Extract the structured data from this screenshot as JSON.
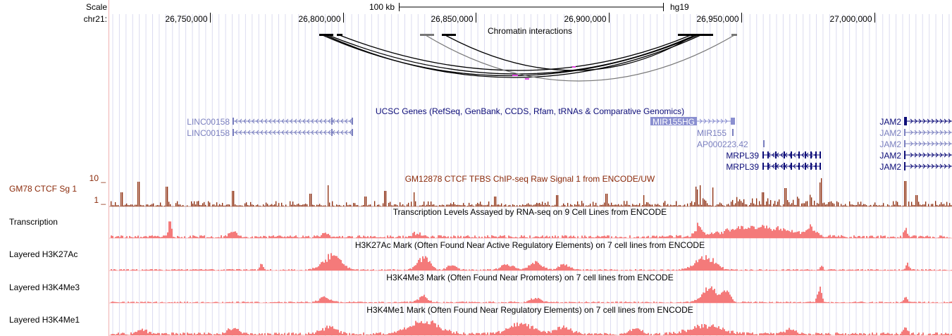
{
  "ruler": {
    "scale_label": "Scale",
    "scale_bar_text": "100 kb",
    "assembly": "hg19",
    "chrom_label": "chr21:",
    "ticks": [
      {
        "pos": 26750000,
        "label": "26,750,000"
      },
      {
        "pos": 26800000,
        "label": "26,800,000"
      },
      {
        "pos": 26850000,
        "label": "26,850,000"
      },
      {
        "pos": 26900000,
        "label": "26,900,000"
      },
      {
        "pos": 26950000,
        "label": "26,950,000"
      },
      {
        "pos": 27000000,
        "label": "27,000,000"
      }
    ]
  },
  "tracks": {
    "chromatin": {
      "title": "Chromatin interactions"
    },
    "genes": {
      "title": "UCSC Genes (RefSeq, GenBank, CCDS, Rfam, tRNAs & Comparative Genomics)",
      "items": [
        {
          "name": "LINC00158",
          "strand": "-",
          "color": "#7a7fbf"
        },
        {
          "name": "LINC00158",
          "strand": "-",
          "color": "#7a7fbf"
        },
        {
          "name": "MIR155HG",
          "strand": "+",
          "color": "#8a8fd0",
          "highlight": true
        },
        {
          "name": "MIR155",
          "strand": "+",
          "color": "#7a7fbf"
        },
        {
          "name": "AP000223.42",
          "strand": "+",
          "color": "#7a7fbf"
        },
        {
          "name": "MRPL39",
          "strand": "-",
          "color": "#0c0c78"
        },
        {
          "name": "MRPL39",
          "strand": "-",
          "color": "#0c0c78"
        },
        {
          "name": "JAM2",
          "strand": "+",
          "color": "#0c0c78"
        },
        {
          "name": "JAM2",
          "strand": "+",
          "color": "#7a7fbf"
        },
        {
          "name": "JAM2",
          "strand": "+",
          "color": "#7a7fbf"
        },
        {
          "name": "JAM2",
          "strand": "+",
          "color": "#0c0c78"
        },
        {
          "name": "JAM2",
          "strand": "+",
          "color": "#0c0c78"
        }
      ]
    },
    "ctcf": {
      "left_label": "GM78 CTCF Sg 1",
      "ymax_label": "10 _",
      "ymin_label": "1 _",
      "title": "GM12878 CTCF TFBS ChIP-seq Raw Signal 1 from ENCODE/UW",
      "color": "#8b2a0a"
    },
    "transcription": {
      "left_label": "Transcription",
      "title": "Transcription Levels Assayed by RNA-seq on 9 Cell Lines from ENCODE",
      "color": "#f47a7a"
    },
    "h3k27ac": {
      "left_label": "Layered H3K27Ac",
      "title": "H3K27Ac Mark (Often Found Near Active Regulatory Elements) on 7 cell lines from ENCODE",
      "color": "#f47a7a"
    },
    "h3k4me3": {
      "left_label": "Layered H3K4Me3",
      "title": "H3K4Me3 Mark (Often Found Near Promoters) on 7 cell lines from ENCODE",
      "color": "#f47a7a"
    },
    "h3k4me1": {
      "left_label": "Layered H3K4Me1",
      "title": "H3K4Me1 Mark (Often Found Near Regulatory Elements) on 7 cell lines from ENCODE",
      "color": "#f47a7a"
    }
  },
  "colors": {
    "guide_lines": "#dcdcf0",
    "left_border": "#f0b0b0",
    "gene_dark": "#0c0c78",
    "gene_light": "#7a7fbf",
    "signal_pink": "#f47a7a",
    "signal_brown": "#8b2a0a"
  }
}
